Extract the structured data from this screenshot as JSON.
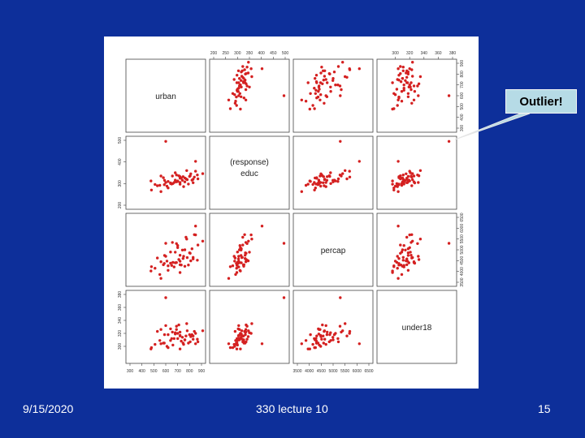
{
  "slide": {
    "date": "9/15/2020",
    "footer_title": "330 lecture 10",
    "page_number": "15",
    "background_color": "#0d2f9a"
  },
  "callout": {
    "text": "Outlier!",
    "color": "#b6dbe6"
  },
  "chart_data": {
    "type": "scatter",
    "kind": "scatterplot-matrix",
    "point_color": "#d42020",
    "variables": [
      {
        "name": "urban",
        "label": "urban",
        "range": [
          300,
          900
        ],
        "ticks": [
          "300",
          "400",
          "500",
          "600",
          "700",
          "800",
          "900"
        ]
      },
      {
        "name": "educ",
        "label": "educ",
        "note": "(response)",
        "range": [
          200,
          500
        ],
        "ticks": [
          "200",
          "300",
          "400",
          "500"
        ]
      },
      {
        "name": "percap",
        "label": "percap",
        "range": [
          3500,
          6500
        ],
        "ticks": [
          "3500",
          "4000",
          "4500",
          "5000",
          "5500",
          "6000",
          "6500"
        ]
      },
      {
        "name": "under18",
        "label": "under18",
        "range": [
          280,
          380
        ],
        "ticks": [
          "300",
          "320",
          "340",
          "360",
          "380"
        ]
      }
    ],
    "top_axis_ticks": {
      "educ": [
        "200",
        "250",
        "300",
        "350",
        "400",
        "450",
        "500",
        "550"
      ],
      "under18": [
        "300",
        "320",
        "340",
        "360",
        "380"
      ]
    },
    "right_axis_ticks": {
      "urban": [
        "300",
        "400",
        "500",
        "600",
        "700",
        "800",
        "900"
      ],
      "percap": [
        "3500",
        "4000",
        "4500",
        "5000",
        "5500",
        "6000",
        "6500"
      ]
    },
    "observations": [
      [
        476,
        312,
        4020,
        296
      ],
      [
        588,
        295,
        4370,
        305
      ],
      [
        760,
        326,
        4240,
        310
      ],
      [
        650,
        298,
        4280,
        312
      ],
      [
        720,
        325,
        4310,
        316
      ],
      [
        610,
        288,
        4480,
        300
      ],
      [
        830,
        304,
        4580,
        316
      ],
      [
        560,
        263,
        3680,
        304
      ],
      [
        710,
        336,
        4550,
        333
      ],
      [
        780,
        318,
        4640,
        324
      ],
      [
        680,
        350,
        4890,
        321
      ],
      [
        740,
        315,
        4990,
        314
      ],
      [
        800,
        333,
        4860,
        318
      ],
      [
        690,
        340,
        5290,
        331
      ],
      [
        870,
        322,
        5220,
        307
      ],
      [
        480,
        270,
        4220,
        298
      ],
      [
        530,
        290,
        4620,
        323
      ],
      [
        820,
        316,
        5050,
        318
      ],
      [
        910,
        346,
        5400,
        324
      ],
      [
        640,
        300,
        4900,
        309
      ],
      [
        750,
        286,
        4700,
        303
      ],
      [
        560,
        335,
        4450,
        326
      ],
      [
        700,
        312,
        5100,
        320
      ],
      [
        620,
        280,
        4260,
        298
      ],
      [
        840,
        330,
        5700,
        323
      ],
      [
        770,
        322,
        5580,
        316
      ],
      [
        590,
        315,
        4740,
        318
      ],
      [
        660,
        300,
        4420,
        302
      ],
      [
        730,
        325,
        4300,
        308
      ],
      [
        810,
        345,
        4490,
        315
      ],
      [
        510,
        296,
        4150,
        303
      ],
      [
        850,
        357,
        5690,
        320
      ],
      [
        670,
        305,
        4210,
        312
      ],
      [
        720,
        297,
        3950,
        296
      ],
      [
        790,
        298,
        4300,
        305
      ],
      [
        600,
        305,
        4700,
        332
      ],
      [
        700,
        310,
        5200,
        312
      ],
      [
        760,
        308,
        5000,
        310
      ],
      [
        550,
        292,
        3860,
        309
      ],
      [
        830,
        320,
        4650,
        311
      ],
      [
        680,
        316,
        4400,
        319
      ],
      [
        640,
        303,
        4380,
        327
      ],
      [
        720,
        305,
        4470,
        317
      ],
      [
        580,
        327,
        4310,
        305
      ],
      [
        805,
        336,
        4840,
        307
      ],
      [
        745,
        332,
        4600,
        305
      ],
      [
        690,
        308,
        4410,
        326
      ],
      [
        620,
        310,
        4050,
        318
      ],
      [
        865,
        340,
        4520,
        311
      ],
      [
        776,
        360,
        5500,
        335
      ],
      [
        656,
        335,
        5340,
        322
      ],
      [
        720,
        332,
        4750,
        322
      ],
      [
        850,
        403,
        6100,
        304
      ],
      [
        600,
        495,
        5300,
        375
      ]
    ]
  }
}
